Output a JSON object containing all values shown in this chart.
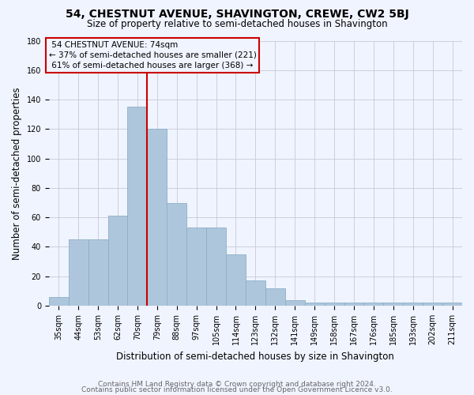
{
  "title": "54, CHESTNUT AVENUE, SHAVINGTON, CREWE, CW2 5BJ",
  "subtitle": "Size of property relative to semi-detached houses in Shavington",
  "xlabel": "Distribution of semi-detached houses by size in Shavington",
  "ylabel": "Number of semi-detached properties",
  "categories": [
    "35sqm",
    "44sqm",
    "53sqm",
    "62sqm",
    "70sqm",
    "79sqm",
    "88sqm",
    "97sqm",
    "105sqm",
    "114sqm",
    "123sqm",
    "132sqm",
    "141sqm",
    "149sqm",
    "158sqm",
    "167sqm",
    "176sqm",
    "185sqm",
    "193sqm",
    "202sqm",
    "211sqm"
  ],
  "values": [
    6,
    45,
    45,
    61,
    135,
    120,
    70,
    53,
    53,
    35,
    17,
    12,
    4,
    2,
    2,
    2,
    2,
    2,
    2,
    2,
    2
  ],
  "bar_color": "#aec6db",
  "bar_edge_color": "#8aafc8",
  "property_label": "54 CHESTNUT AVENUE: 74sqm",
  "smaller_pct": 37,
  "smaller_count": 221,
  "larger_pct": 61,
  "larger_count": 368,
  "vline_color": "#cc0000",
  "vline_bin_index": 4,
  "ylim": [
    0,
    180
  ],
  "yticks": [
    0,
    20,
    40,
    60,
    80,
    100,
    120,
    140,
    160,
    180
  ],
  "footer1": "Contains HM Land Registry data © Crown copyright and database right 2024.",
  "footer2": "Contains public sector information licensed under the Open Government Licence v3.0.",
  "background_color": "#f0f4ff",
  "grid_color": "#c8c8d8",
  "title_fontsize": 10,
  "subtitle_fontsize": 8.5,
  "axis_label_fontsize": 8.5,
  "tick_fontsize": 7,
  "footer_fontsize": 6.5,
  "annotation_fontsize": 7.5
}
